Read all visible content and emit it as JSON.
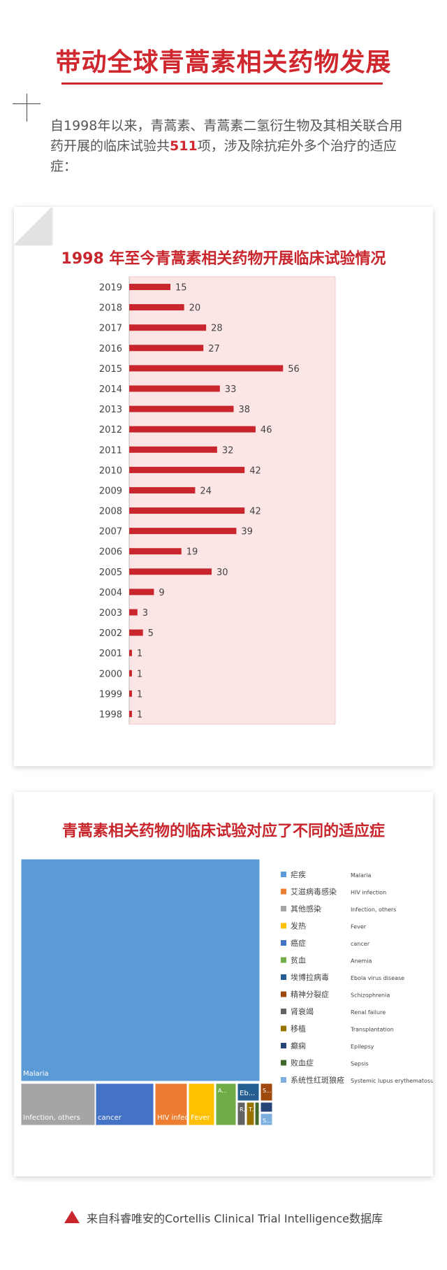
{
  "title": "带动全球青蒿素相关药物发展",
  "intro": {
    "before": "自1998年以来，青蒿素、青蒿素二氢衍生物及其相关联合用药开展的临床试验共",
    "number": "511",
    "after": "项，涉及除抗疟外多个治疗的适应症："
  },
  "footer": "来自科睿唯安的Cortellis Clinical Trial Intelligence数据库",
  "colors": {
    "accent": "#d0262d",
    "bar": "#c8262c",
    "plot_bg": "#fbe5e5"
  },
  "chart_data": [
    {
      "type": "bar",
      "orientation": "horizontal",
      "title": "1998 年至今青蒿素相关药物开展临床试验情况",
      "categories": [
        "2019",
        "2018",
        "2017",
        "2016",
        "2015",
        "2014",
        "2013",
        "2012",
        "2011",
        "2010",
        "2009",
        "2008",
        "2007",
        "2006",
        "2005",
        "2004",
        "2003",
        "2002",
        "2001",
        "2000",
        "1999",
        "1998"
      ],
      "values": [
        15,
        20,
        28,
        27,
        56,
        33,
        38,
        46,
        32,
        42,
        24,
        42,
        39,
        19,
        30,
        9,
        3,
        5,
        1,
        1,
        1,
        1
      ],
      "xlim": [
        0,
        75
      ],
      "grid": false,
      "data_labels": true
    },
    {
      "type": "treemap",
      "title": "青蒿素相关药物的临床试验对应了不同的适应症",
      "legend_position": "right",
      "items": [
        {
          "name_cn": "疟疾",
          "name_en": "Malaria",
          "label": "Malaria",
          "color": "#5b9bd5"
        },
        {
          "name_cn": "艾滋病毒感染",
          "name_en": "HIV infection",
          "label": "HIV infecti...",
          "color": "#ed7d31"
        },
        {
          "name_cn": "其他感染",
          "name_en": "Infection, others",
          "label": "Infection, others",
          "color": "#a5a5a5"
        },
        {
          "name_cn": "发热",
          "name_en": "Fever",
          "label": "Fever",
          "color": "#ffc000"
        },
        {
          "name_cn": "癌症",
          "name_en": "cancer",
          "label": "cancer",
          "color": "#4472c4"
        },
        {
          "name_cn": "贫血",
          "name_en": "Anemia",
          "label": "A...",
          "color": "#70ad47"
        },
        {
          "name_cn": "埃博拉病毒",
          "name_en": "Ebola virus disease",
          "label": "Eb...",
          "color": "#255e91"
        },
        {
          "name_cn": "精神分裂症",
          "name_en": "Schizophrenia",
          "label": "S...",
          "color": "#9e480e"
        },
        {
          "name_cn": "肾衰竭",
          "name_en": "Renal failure",
          "label": "R...",
          "color": "#636363"
        },
        {
          "name_cn": "移植",
          "name_en": "Transplantation",
          "label": "T...",
          "color": "#997300"
        },
        {
          "name_cn": "癫痫",
          "name_en": "Epilepsy",
          "label": "",
          "color": "#264478"
        },
        {
          "name_cn": "败血症",
          "name_en": "Sepsis",
          "label": "",
          "color": "#43682b"
        },
        {
          "name_cn": "系统性红斑狼疮",
          "name_en": "Systemic lupus erythematosus",
          "label": "S...",
          "color": "#7cafdd"
        }
      ]
    }
  ]
}
